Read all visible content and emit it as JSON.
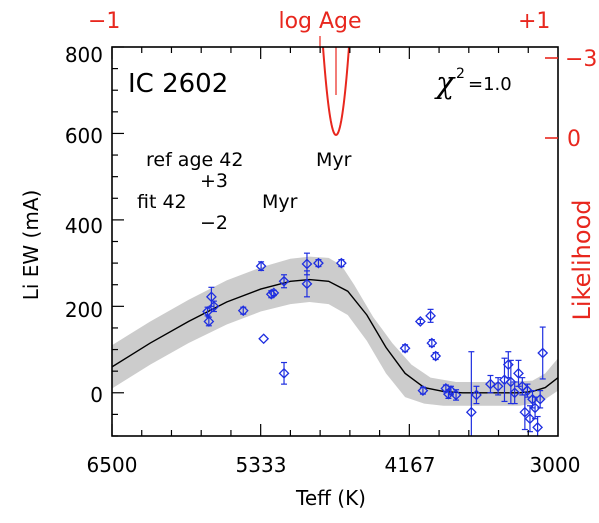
{
  "chart_data": {
    "type": "scatter",
    "title": "IC 2602",
    "xlabel": "Teff (K)",
    "ylabel": "Li EW (mA)",
    "xlim": [
      6500,
      3000
    ],
    "ylim": [
      -100,
      800
    ],
    "x_ticks": [
      "6500",
      "5333",
      "4167",
      "3000"
    ],
    "y_ticks": [
      "0",
      "200",
      "400",
      "600",
      "800"
    ],
    "chi2_label": "χ",
    "chi2_sup": "2",
    "chi2_value": "=1.0",
    "annotation": {
      "ref_label": "ref age 42",
      "ref_unit": "Myr",
      "plus": "+3",
      "fit_label": "fit 42",
      "fit_unit": "Myr",
      "minus": "−2"
    },
    "top_axis": {
      "label": "log Age",
      "left": "−1",
      "right": "+1"
    },
    "right_axis": {
      "label": "Likelihood",
      "top_tick": "−3",
      "zero_tick": "0"
    },
    "colors": {
      "data": "#1f2fe0",
      "model": "#000000",
      "band": "#cccccc",
      "likelihood": "#e8271e"
    },
    "model_curve": [
      [
        6500,
        60
      ],
      [
        6200,
        115
      ],
      [
        5900,
        165
      ],
      [
        5600,
        210
      ],
      [
        5333,
        240
      ],
      [
        5100,
        258
      ],
      [
        4950,
        262
      ],
      [
        4800,
        258
      ],
      [
        4650,
        235
      ],
      [
        4500,
        180
      ],
      [
        4350,
        105
      ],
      [
        4200,
        45
      ],
      [
        4050,
        12
      ],
      [
        3900,
        3
      ],
      [
        3750,
        0
      ],
      [
        3600,
        0
      ],
      [
        3450,
        0
      ],
      [
        3300,
        0
      ],
      [
        3200,
        3
      ],
      [
        3100,
        12
      ],
      [
        3000,
        35
      ]
    ],
    "band_upper": [
      [
        6500,
        110
      ],
      [
        6200,
        165
      ],
      [
        5900,
        215
      ],
      [
        5600,
        260
      ],
      [
        5333,
        290
      ],
      [
        5100,
        310
      ],
      [
        4950,
        315
      ],
      [
        4800,
        312
      ],
      [
        4700,
        295
      ],
      [
        4600,
        250
      ],
      [
        4450,
        175
      ],
      [
        4300,
        115
      ],
      [
        4150,
        65
      ],
      [
        4000,
        35
      ],
      [
        3800,
        25
      ],
      [
        3600,
        25
      ],
      [
        3400,
        25
      ],
      [
        3200,
        28
      ],
      [
        3100,
        45
      ],
      [
        3000,
        80
      ]
    ],
    "band_lower": [
      [
        6500,
        10
      ],
      [
        6200,
        65
      ],
      [
        5900,
        115
      ],
      [
        5600,
        158
      ],
      [
        5333,
        188
      ],
      [
        5100,
        205
      ],
      [
        4950,
        210
      ],
      [
        4800,
        205
      ],
      [
        4650,
        180
      ],
      [
        4500,
        120
      ],
      [
        4350,
        45
      ],
      [
        4200,
        -10
      ],
      [
        4050,
        -25
      ],
      [
        3900,
        -30
      ],
      [
        3700,
        -30
      ],
      [
        3500,
        -30
      ],
      [
        3300,
        -30
      ],
      [
        3200,
        -25
      ],
      [
        3100,
        -15
      ],
      [
        3000,
        5
      ]
    ],
    "points": [
      {
        "x": 5750,
        "y": 188,
        "err": 10
      },
      {
        "x": 5740,
        "y": 165,
        "err": 10
      },
      {
        "x": 5720,
        "y": 222,
        "err": 22
      },
      {
        "x": 5700,
        "y": 200,
        "err": 12
      },
      {
        "x": 5470,
        "y": 190,
        "err": 8
      },
      {
        "x": 5330,
        "y": 293,
        "err": 10
      },
      {
        "x": 5310,
        "y": 125,
        "err": 0
      },
      {
        "x": 5250,
        "y": 228,
        "err": 8
      },
      {
        "x": 5230,
        "y": 231,
        "err": 6
      },
      {
        "x": 5150,
        "y": 258,
        "err": 15
      },
      {
        "x": 5150,
        "y": 45,
        "err": 25
      },
      {
        "x": 4970,
        "y": 252,
        "err": 30
      },
      {
        "x": 4970,
        "y": 298,
        "err": 25
      },
      {
        "x": 4880,
        "y": 300,
        "err": 8
      },
      {
        "x": 4700,
        "y": 300,
        "err": 8
      },
      {
        "x": 4200,
        "y": 103,
        "err": 8
      },
      {
        "x": 4080,
        "y": 165,
        "err": 5
      },
      {
        "x": 4060,
        "y": 5,
        "err": 8
      },
      {
        "x": 4000,
        "y": 178,
        "err": 15
      },
      {
        "x": 3990,
        "y": 115,
        "err": 8
      },
      {
        "x": 3960,
        "y": 85,
        "err": 8
      },
      {
        "x": 3880,
        "y": 10,
        "err": 8
      },
      {
        "x": 3860,
        "y": -3,
        "err": 10
      },
      {
        "x": 3840,
        "y": 5,
        "err": 10
      },
      {
        "x": 3800,
        "y": -5,
        "err": 12
      },
      {
        "x": 3680,
        "y": -45,
        "err": 140
      },
      {
        "x": 3640,
        "y": -5,
        "err": 20
      },
      {
        "x": 3530,
        "y": 20,
        "err": 20
      },
      {
        "x": 3470,
        "y": 15,
        "err": 20
      },
      {
        "x": 3420,
        "y": 30,
        "err": 50
      },
      {
        "x": 3390,
        "y": 65,
        "err": 30
      },
      {
        "x": 3370,
        "y": 25,
        "err": 50
      },
      {
        "x": 3340,
        "y": 0,
        "err": 25
      },
      {
        "x": 3310,
        "y": 45,
        "err": 30
      },
      {
        "x": 3280,
        "y": 15,
        "err": 20
      },
      {
        "x": 3260,
        "y": -45,
        "err": 40
      },
      {
        "x": 3240,
        "y": 5,
        "err": 15
      },
      {
        "x": 3220,
        "y": -60,
        "err": 30
      },
      {
        "x": 3200,
        "y": -15,
        "err": 20
      },
      {
        "x": 3180,
        "y": -35,
        "err": 25
      },
      {
        "x": 3160,
        "y": -80,
        "err": 25
      },
      {
        "x": 3140,
        "y": -15,
        "err": 20
      },
      {
        "x": 3120,
        "y": 92,
        "err": 60
      }
    ]
  }
}
